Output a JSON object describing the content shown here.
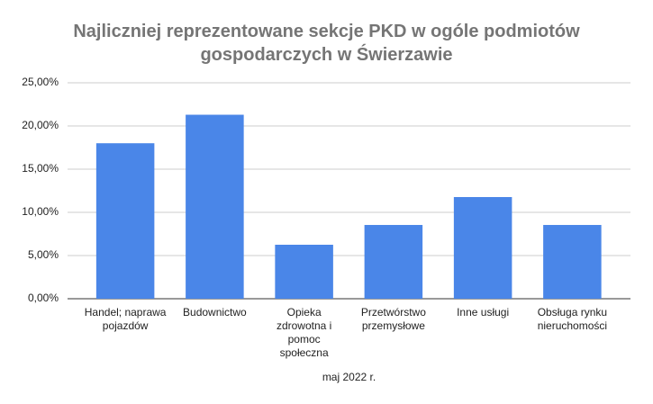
{
  "chart_data": {
    "type": "bar",
    "title": "Najliczniej reprezentowane sekcje PKD w ogóle podmiotów gospodarczych w Świerzawie",
    "x_label": "maj 2022 r.",
    "categories": [
      "Handel; naprawa pojazdów",
      "Budownictwo",
      "Opieka zdrowotna i pomoc społeczna",
      "Przetwórstwo przemysłowe",
      "Inne usługi",
      "Obsługa rynku nieruchomości"
    ],
    "values": [
      18.0,
      21.3,
      6.25,
      8.54,
      11.77,
      8.54
    ],
    "color": "#4a86e8",
    "ylim": [
      0,
      25
    ],
    "yticks": [
      {
        "value": 0,
        "label": "0,00%"
      },
      {
        "value": 5,
        "label": "5,00%"
      },
      {
        "value": 10,
        "label": "10,00%"
      },
      {
        "value": 15,
        "label": "15,00%"
      },
      {
        "value": 20,
        "label": "20,00%"
      },
      {
        "value": 25,
        "label": "25,00%"
      }
    ],
    "grid": true
  }
}
